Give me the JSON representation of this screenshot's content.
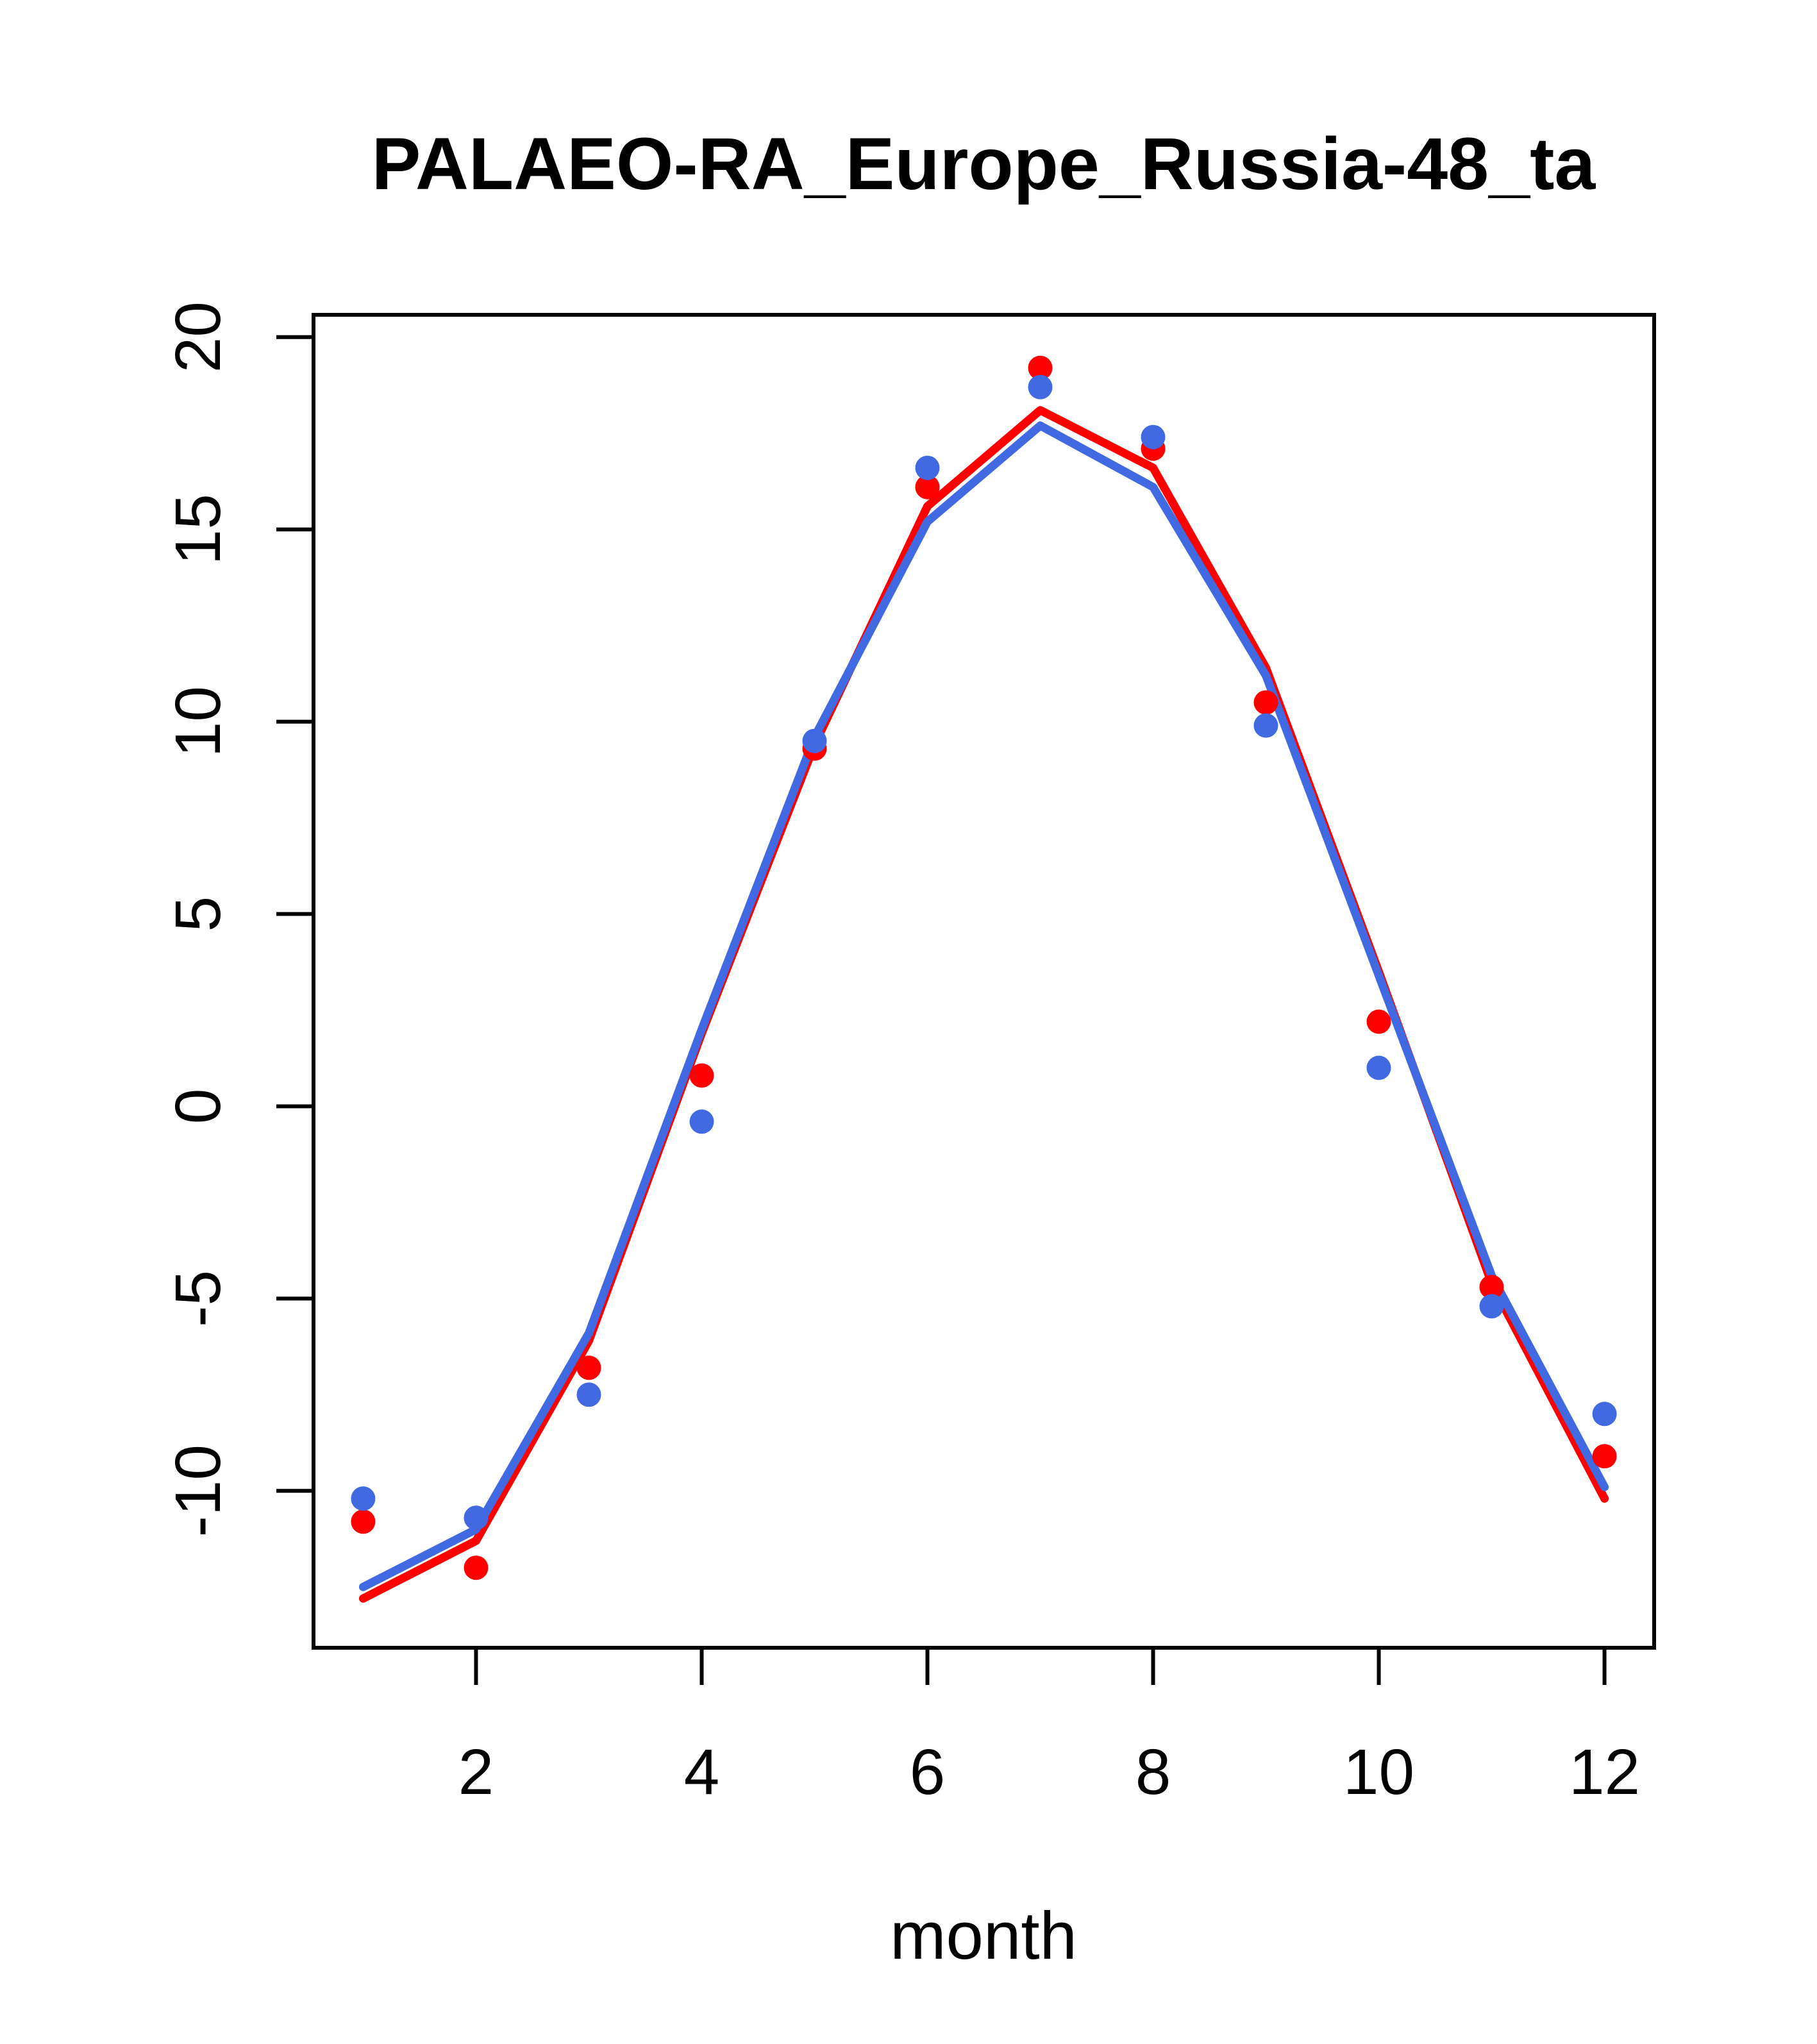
{
  "title": "PALAEO-RA_Europe_Russia-48_ta",
  "x_axis": {
    "label": "month",
    "ticks": [
      "2",
      "4",
      "6",
      "8",
      "10",
      "12"
    ]
  },
  "y_axis": {
    "label": "",
    "ticks": [
      "-10",
      "-5",
      "0",
      "5",
      "10",
      "15",
      "20"
    ]
  },
  "colors": {
    "red": "#FF0000",
    "blue": "#4169E1",
    "axis": "#000000",
    "background": "#FFFFFF"
  },
  "chart_data": {
    "type": "line",
    "title": "PALAEO-RA_Europe_Russia-48_ta",
    "xlabel": "month",
    "ylabel": "",
    "x": [
      1,
      2,
      3,
      4,
      5,
      6,
      7,
      8,
      9,
      10,
      11,
      12
    ],
    "xlim": [
      0.56,
      12.44
    ],
    "ylim": [
      -14.08,
      20.58
    ],
    "x_ticks": [
      2,
      4,
      6,
      8,
      10,
      12
    ],
    "y_ticks": [
      -10,
      -5,
      0,
      5,
      10,
      15,
      20
    ],
    "grid": false,
    "legend": null,
    "series": [
      {
        "name": "red-line",
        "type": "line",
        "color": "#FF0000",
        "values": [
          -12.8,
          -11.3,
          -6.1,
          1.9,
          9.4,
          15.6,
          18.1,
          16.6,
          11.4,
          3.5,
          -4.6,
          -10.2
        ]
      },
      {
        "name": "blue-line",
        "type": "line",
        "color": "#4169E1",
        "values": [
          -12.5,
          -11.0,
          -5.9,
          2.0,
          9.6,
          15.2,
          17.7,
          16.1,
          11.2,
          3.4,
          -4.4,
          -9.9
        ]
      },
      {
        "name": "red-points",
        "type": "scatter",
        "color": "#FF0000",
        "values": [
          -10.8,
          -12.0,
          -6.8,
          0.8,
          9.3,
          16.1,
          19.2,
          17.1,
          10.5,
          2.2,
          -4.7,
          -9.1
        ]
      },
      {
        "name": "blue-points",
        "type": "scatter",
        "color": "#4169E1",
        "values": [
          -10.2,
          -10.7,
          -7.5,
          -0.4,
          9.5,
          16.6,
          18.7,
          17.4,
          9.9,
          1.0,
          -5.2,
          -8.0
        ]
      }
    ]
  }
}
